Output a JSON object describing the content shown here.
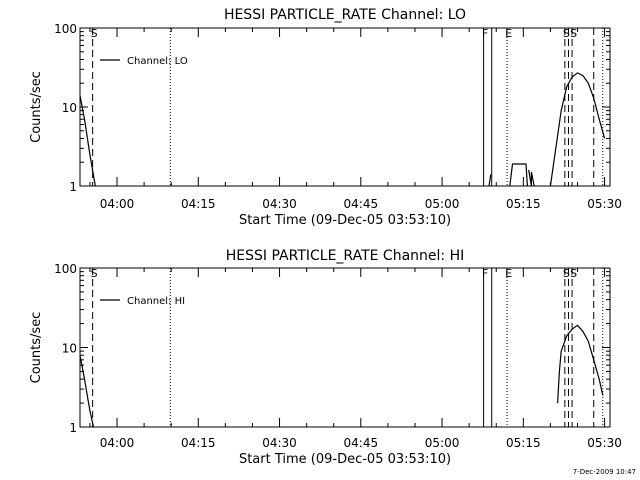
{
  "footer": {
    "timestamp": "7-Dec-2009 10:47"
  },
  "chart_data": [
    {
      "type": "line",
      "title": "HESSI PARTICLE_RATE Channel: LO",
      "xlabel": "Start Time (09-Dec-05 03:53:10)",
      "ylabel": "Counts/sec",
      "y_scale": "log",
      "xlim": [
        "03:53:10",
        "05:31:00"
      ],
      "ylim": [
        1,
        100
      ],
      "x_ticks": [
        "04:00",
        "04:15",
        "04:30",
        "04:45",
        "05:00",
        "05:15",
        "05:30"
      ],
      "y_ticks": [
        "1",
        "10",
        "100"
      ],
      "grid": false,
      "legend": {
        "position": "top-left",
        "entries": [
          "Channel: LO"
        ]
      },
      "series": [
        {
          "name": "Channel: LO",
          "segments": [
            {
              "x": [
                "03:53:10",
                "03:54:00",
                "03:55:00",
                "03:56:00"
              ],
              "y": [
                14,
                7,
                2.5,
                1
              ]
            },
            {
              "x": [
                "05:08:40",
                "05:09:00"
              ],
              "y": [
                1,
                1.4
              ]
            },
            {
              "x": [
                "05:12:30",
                "05:13:00",
                "05:15:30",
                "05:15:45"
              ],
              "y": [
                1,
                1.9,
                1.9,
                1
              ]
            },
            {
              "x": [
                "05:16:00",
                "05:16:30",
                "05:16:30",
                "05:17:00"
              ],
              "y": [
                1.6,
                1,
                1.5,
                1
              ]
            },
            {
              "x": [
                "05:20:00",
                "05:21:00",
                "05:22:00",
                "05:23:00",
                "05:24:00",
                "05:25:00",
                "05:26:00",
                "05:27:00",
                "05:28:00",
                "05:29:00",
                "05:30:00"
              ],
              "y": [
                1,
                3,
                9,
                18,
                24,
                27,
                25,
                20,
                13,
                7,
                4
              ]
            }
          ]
        }
      ],
      "markers": [
        {
          "type": "dashed",
          "x": "03:55:30",
          "label": "S"
        },
        {
          "type": "dotted",
          "x": "04:09:50",
          "label": ""
        },
        {
          "type": "solid",
          "x": "05:07:40",
          "label": "F"
        },
        {
          "type": "solid",
          "x": "05:09:10",
          "label": ""
        },
        {
          "type": "dotted",
          "x": "05:12:00",
          "label": "E"
        },
        {
          "type": "dashed",
          "x": "05:22:40",
          "label": "S"
        },
        {
          "type": "dashed",
          "x": "05:23:20",
          "label": ""
        },
        {
          "type": "dashed",
          "x": "05:24:00",
          "label": "S"
        },
        {
          "type": "dashed",
          "x": "05:28:00",
          "label": ""
        },
        {
          "type": "dotted",
          "x": "05:29:40",
          "label": ""
        }
      ]
    },
    {
      "type": "line",
      "title": "HESSI PARTICLE_RATE Channel: HI",
      "xlabel": "Start Time (09-Dec-05 03:53:10)",
      "ylabel": "Counts/sec",
      "y_scale": "log",
      "xlim": [
        "03:53:10",
        "05:31:00"
      ],
      "ylim": [
        1,
        100
      ],
      "x_ticks": [
        "04:00",
        "04:15",
        "04:30",
        "04:45",
        "05:00",
        "05:15",
        "05:30"
      ],
      "y_ticks": [
        "1",
        "10",
        "100"
      ],
      "grid": false,
      "legend": {
        "position": "top-left",
        "entries": [
          "Channel: HI"
        ]
      },
      "series": [
        {
          "name": "Channel: HI",
          "segments": [
            {
              "x": [
                "03:53:10",
                "03:54:00",
                "03:55:00",
                "03:55:40"
              ],
              "y": [
                8,
                4,
                1.6,
                1
              ]
            },
            {
              "x": [
                "05:21:20",
                "05:21:40",
                "05:22:00",
                "05:23:00",
                "05:24:00",
                "05:25:00",
                "05:26:00",
                "05:27:00",
                "05:28:00",
                "05:29:00",
                "05:29:40"
              ],
              "y": [
                2,
                5,
                9,
                14,
                17,
                19,
                16,
                12,
                7,
                4,
                2.5
              ]
            }
          ]
        }
      ],
      "markers": [
        {
          "type": "dashed",
          "x": "03:55:30",
          "label": "S"
        },
        {
          "type": "dotted",
          "x": "04:09:50",
          "label": ""
        },
        {
          "type": "solid",
          "x": "05:07:40",
          "label": "F"
        },
        {
          "type": "solid",
          "x": "05:09:10",
          "label": ""
        },
        {
          "type": "dotted",
          "x": "05:12:00",
          "label": "E"
        },
        {
          "type": "dashed",
          "x": "05:22:40",
          "label": "S"
        },
        {
          "type": "dashed",
          "x": "05:23:20",
          "label": ""
        },
        {
          "type": "dashed",
          "x": "05:24:00",
          "label": "S"
        },
        {
          "type": "dashed",
          "x": "05:28:00",
          "label": ""
        },
        {
          "type": "dotted",
          "x": "05:29:40",
          "label": ""
        }
      ]
    }
  ]
}
